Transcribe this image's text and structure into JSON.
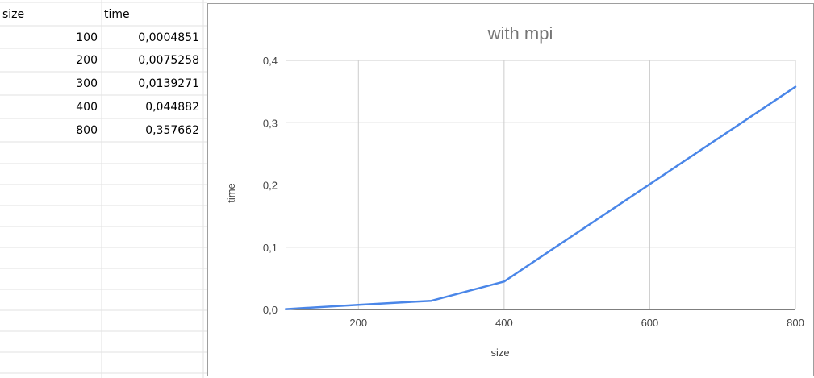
{
  "sheet": {
    "columns": [
      "size",
      "time"
    ],
    "rows": [
      [
        "100",
        "0,0004851"
      ],
      [
        "200",
        "0,0075258"
      ],
      [
        "300",
        "0,0139271"
      ],
      [
        "400",
        "0,044882"
      ],
      [
        "800",
        "0,357662"
      ]
    ]
  },
  "colors": {
    "series": "#4a86e8",
    "gridline": "#cccccc",
    "axis": "#333333",
    "title": "#757575",
    "cell_border": "#e2e2e2"
  },
  "chart_data": {
    "type": "line",
    "title": "with mpi",
    "xlabel": "size",
    "ylabel": "time",
    "xlim": [
      100,
      800
    ],
    "ylim": [
      0,
      0.4
    ],
    "x_ticks": [
      200,
      400,
      600,
      800
    ],
    "x_tick_labels": [
      "200",
      "400",
      "600",
      "800"
    ],
    "y_ticks": [
      0,
      0.1,
      0.2,
      0.3,
      0.4
    ],
    "y_tick_labels": [
      "0,0",
      "0,1",
      "0,2",
      "0,3",
      "0,4"
    ],
    "grid": true,
    "legend": "none",
    "series": [
      {
        "x": [
          100,
          200,
          300,
          400,
          800
        ],
        "values": [
          0.0004851,
          0.0075258,
          0.0139271,
          0.044882,
          0.357662
        ]
      }
    ]
  }
}
